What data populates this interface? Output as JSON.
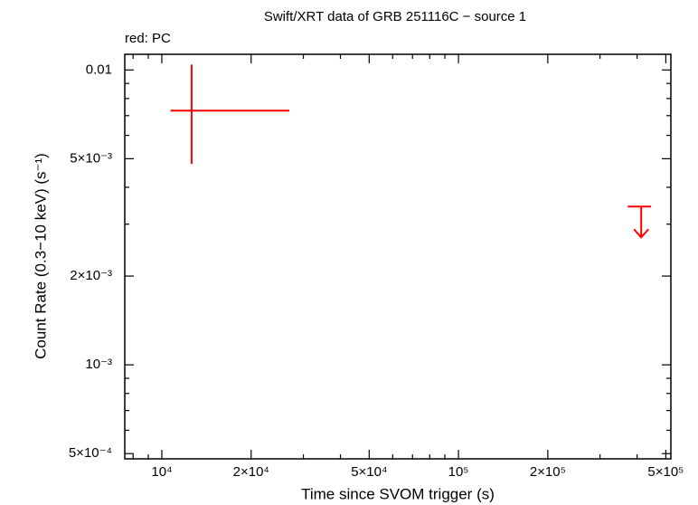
{
  "chart_data": {
    "type": "scatter",
    "title": "Swift/XRT data of GRB 251116C − source 1",
    "xlabel": "Time since SVOM trigger (s)",
    "ylabel": "Count Rate (0.3−10 keV) (s⁻¹)",
    "xscale": "log",
    "yscale": "log",
    "xlim": [
      7500,
      520000
    ],
    "ylim": [
      0.00048,
      0.0113
    ],
    "xticks": [
      {
        "value": 10000,
        "label": "10⁴"
      },
      {
        "value": 20000,
        "label": "2×10⁴"
      },
      {
        "value": 50000,
        "label": "5×10⁴"
      },
      {
        "value": 100000,
        "label": "10⁵"
      },
      {
        "value": 200000,
        "label": "2×10⁵"
      },
      {
        "value": 500000,
        "label": "5×10⁵"
      }
    ],
    "xminorticks": [
      8000,
      9000,
      30000,
      40000,
      60000,
      70000,
      80000,
      90000,
      300000,
      400000
    ],
    "yticks": [
      {
        "value": 0.0005,
        "label": "5×10⁻⁴"
      },
      {
        "value": 0.001,
        "label": "10⁻³"
      },
      {
        "value": 0.002,
        "label": "2×10⁻³"
      },
      {
        "value": 0.005,
        "label": "5×10⁻³"
      },
      0.01
    ],
    "yminorticks": [
      0.0006,
      0.0007,
      0.0008,
      0.0009,
      0.003,
      0.004,
      0.006,
      0.007,
      0.008,
      0.009
    ],
    "series": [
      {
        "name": "red: PC",
        "color": "#ff0000",
        "x": [
          12600,
          413000
        ],
        "x_minus": [
          1900,
          41000
        ],
        "x_plus": [
          14300,
          33000
        ],
        "values": [
          0.00728,
          0.00344
        ],
        "y_minus": [
          0.00248,
          null
        ],
        "y_plus": [
          0.00315,
          null
        ],
        "upper_limit": [
          false,
          true
        ]
      }
    ]
  }
}
